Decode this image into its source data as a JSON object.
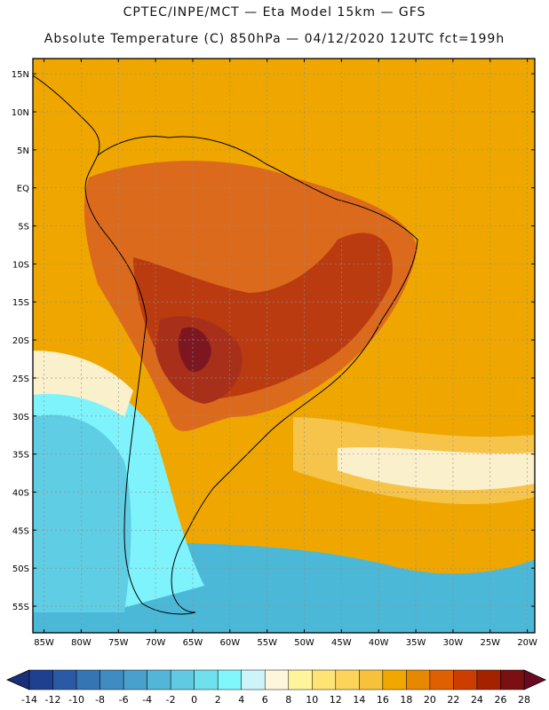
{
  "title_line1": "CPTEC/INPE/MCT —  Eta Model 15km — GFS",
  "title_line2": "Absolute Temperature (C) 850hPa — 04/12/2020 12UTC fct=199h",
  "lat_ticks": [
    {
      "label": "15N",
      "lat": 15
    },
    {
      "label": "10N",
      "lat": 10
    },
    {
      "label": "5N",
      "lat": 5
    },
    {
      "label": "EQ",
      "lat": 0
    },
    {
      "label": "5S",
      "lat": -5
    },
    {
      "label": "10S",
      "lat": -10
    },
    {
      "label": "15S",
      "lat": -15
    },
    {
      "label": "20S",
      "lat": -20
    },
    {
      "label": "25S",
      "lat": -25
    },
    {
      "label": "30S",
      "lat": -30
    },
    {
      "label": "35S",
      "lat": -35
    },
    {
      "label": "40S",
      "lat": -40
    },
    {
      "label": "45S",
      "lat": -45
    },
    {
      "label": "50S",
      "lat": -50
    },
    {
      "label": "55S",
      "lat": -55
    }
  ],
  "lon_ticks": [
    {
      "label": "85W",
      "lon": -85
    },
    {
      "label": "80W",
      "lon": -80
    },
    {
      "label": "75W",
      "lon": -75
    },
    {
      "label": "70W",
      "lon": -70
    },
    {
      "label": "65W",
      "lon": -65
    },
    {
      "label": "60W",
      "lon": -60
    },
    {
      "label": "55W",
      "lon": -55
    },
    {
      "label": "50W",
      "lon": -50
    },
    {
      "label": "45W",
      "lon": -45
    },
    {
      "label": "40W",
      "lon": -40
    },
    {
      "label": "35W",
      "lon": -35
    },
    {
      "label": "30W",
      "lon": -30
    },
    {
      "label": "25W",
      "lon": -25
    },
    {
      "label": "20W",
      "lon": -20
    }
  ],
  "colorbar": {
    "labels": [
      "-14",
      "-12",
      "-10",
      "-8",
      "-6",
      "-4",
      "-2",
      "0",
      "2",
      "4",
      "6",
      "8",
      "10",
      "12",
      "14",
      "16",
      "18",
      "20",
      "22",
      "24",
      "26",
      "28"
    ],
    "colors": [
      "#1f3f8f",
      "#2a5aa6",
      "#3575b4",
      "#3f8cc2",
      "#48a1cc",
      "#53b6d8",
      "#5fcae2",
      "#6ee0ee",
      "#7ff7fb",
      "#cdf4fb",
      "#fdf6dc",
      "#fef49a",
      "#fde474",
      "#fcd45a",
      "#f7c13c",
      "#f0a800",
      "#e88800",
      "#df6000",
      "#cc3e00",
      "#a42200",
      "#7a1010"
    ],
    "low_color": "#1a2f7a",
    "high_color": "#6a0a20"
  },
  "colors": {
    "ocean_warm": "#efa700",
    "ocean_band": "#f6c44a",
    "land_hot": "#dc6a1c",
    "land_very_hot": "#bb3b10",
    "chaco_core": "#7c1722",
    "coast_cool": "#5fcde4",
    "coast_cyan": "#7ff3fb",
    "deep_ocean_south": "#4bb8d8",
    "pale_band": "#fbf0cc",
    "border": "#000000",
    "grid": "#8e8e8e"
  }
}
